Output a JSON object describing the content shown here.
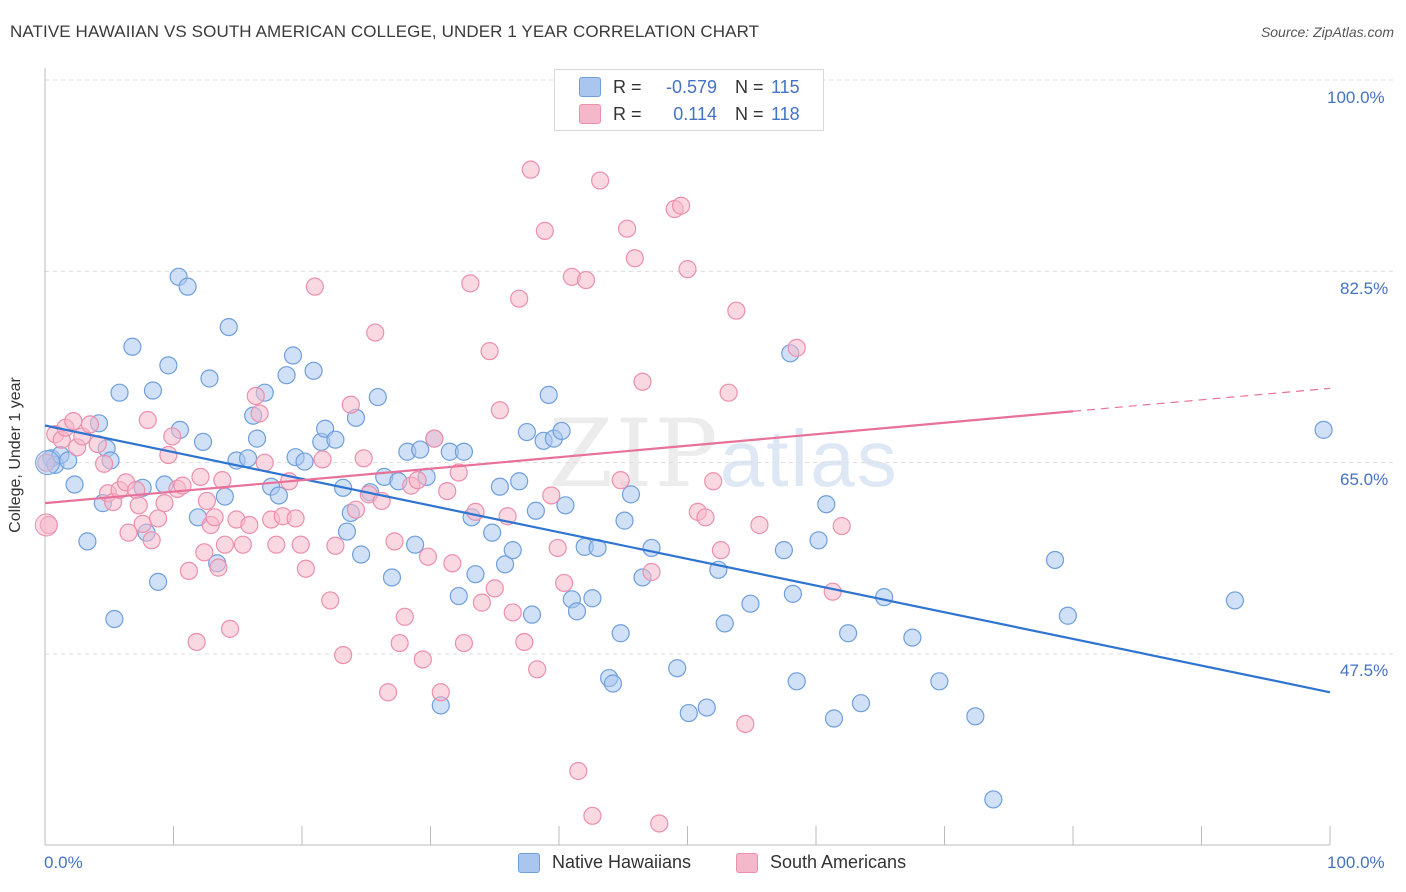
{
  "title": "NATIVE HAWAIIAN VS SOUTH AMERICAN COLLEGE, UNDER 1 YEAR CORRELATION CHART",
  "source": "Source: ZipAtlas.com",
  "watermark": {
    "zip": "ZIP",
    "atlas": "atlas"
  },
  "legend": {
    "r_label": "R =",
    "n_label": "N =",
    "rows": [
      {
        "r": "-0.579",
        "n": "115",
        "color": "#aac6ee"
      },
      {
        "r": "0.114",
        "n": "118",
        "color": "#f5b8cb"
      }
    ]
  },
  "bottom_legend": [
    "Native Hawaiians",
    "South Americans"
  ],
  "colors": {
    "blue_fill": "#aac6ee",
    "blue_stroke": "#6f9fdc",
    "blue_line": "#2f74d0",
    "pink_fill": "#f5b8cb",
    "pink_stroke": "#ec8fac",
    "pink_line": "#e8719a",
    "tick_text": "#4472c4"
  },
  "chart_data": {
    "type": "scatter",
    "title": "NATIVE HAWAIIAN VS SOUTH AMERICAN COLLEGE, UNDER 1 YEAR CORRELATION CHART",
    "xlabel": "",
    "ylabel": "College, Under 1 year",
    "xlim": [
      0,
      100
    ],
    "ylim": [
      30.5,
      102
    ],
    "x_tick_labels": [
      "0.0%",
      "100.0%"
    ],
    "y_ticks": [
      47.5,
      65.0,
      82.5,
      100.0
    ],
    "y_tick_labels": [
      "47.5%",
      "65.0%",
      "82.5%",
      "100.0%"
    ],
    "grid": true,
    "legend_position": "top-center",
    "series": [
      {
        "name": "Native Hawaiians",
        "r": -0.579,
        "n": 115,
        "trend": [
          [
            0,
            68.4
          ],
          [
            100,
            44.0
          ]
        ],
        "points": [
          [
            0.5,
            65.4
          ],
          [
            0.8,
            64.8
          ],
          [
            1.2,
            65.7
          ],
          [
            1.8,
            65.2
          ],
          [
            2.3,
            63.0
          ],
          [
            3.3,
            57.8
          ],
          [
            4.2,
            68.6
          ],
          [
            4.5,
            61.3
          ],
          [
            4.8,
            66.3
          ],
          [
            5.1,
            65.2
          ],
          [
            5.4,
            50.7
          ],
          [
            5.8,
            71.4
          ],
          [
            6.8,
            75.6
          ],
          [
            7.6,
            62.7
          ],
          [
            7.9,
            58.6
          ],
          [
            8.4,
            71.6
          ],
          [
            8.8,
            54.1
          ],
          [
            9.3,
            63.0
          ],
          [
            9.6,
            73.9
          ],
          [
            10.5,
            68.0
          ],
          [
            10.4,
            82.0
          ],
          [
            11.1,
            81.1
          ],
          [
            11.9,
            60.0
          ],
          [
            12.3,
            66.9
          ],
          [
            12.8,
            72.7
          ],
          [
            13.4,
            55.8
          ],
          [
            14.0,
            61.9
          ],
          [
            14.3,
            77.4
          ],
          [
            14.9,
            65.2
          ],
          [
            15.8,
            65.4
          ],
          [
            16.2,
            69.3
          ],
          [
            16.5,
            67.2
          ],
          [
            17.1,
            71.4
          ],
          [
            17.6,
            62.8
          ],
          [
            18.2,
            62.0
          ],
          [
            18.8,
            73.0
          ],
          [
            19.3,
            74.8
          ],
          [
            19.5,
            65.5
          ],
          [
            20.2,
            65.1
          ],
          [
            20.9,
            73.4
          ],
          [
            21.5,
            66.9
          ],
          [
            21.8,
            68.1
          ],
          [
            22.6,
            67.1
          ],
          [
            23.2,
            62.7
          ],
          [
            23.5,
            58.7
          ],
          [
            23.8,
            60.4
          ],
          [
            24.2,
            69.1
          ],
          [
            24.6,
            56.6
          ],
          [
            25.3,
            62.3
          ],
          [
            25.9,
            71.0
          ],
          [
            26.4,
            63.7
          ],
          [
            27.0,
            54.5
          ],
          [
            27.5,
            63.3
          ],
          [
            28.2,
            66.0
          ],
          [
            28.8,
            57.5
          ],
          [
            29.2,
            66.2
          ],
          [
            29.7,
            63.7
          ],
          [
            30.3,
            67.2
          ],
          [
            30.8,
            42.8
          ],
          [
            31.5,
            66.0
          ],
          [
            32.2,
            52.8
          ],
          [
            32.6,
            66.0
          ],
          [
            33.2,
            60.0
          ],
          [
            33.5,
            54.8
          ],
          [
            34.8,
            58.6
          ],
          [
            35.4,
            62.8
          ],
          [
            35.8,
            55.7
          ],
          [
            36.4,
            57.0
          ],
          [
            36.9,
            63.3
          ],
          [
            37.5,
            67.8
          ],
          [
            37.9,
            51.1
          ],
          [
            38.2,
            60.6
          ],
          [
            38.8,
            67.0
          ],
          [
            39.2,
            71.2
          ],
          [
            39.6,
            67.2
          ],
          [
            40.2,
            67.9
          ],
          [
            40.5,
            61.1
          ],
          [
            41.0,
            52.5
          ],
          [
            41.4,
            51.4
          ],
          [
            42.0,
            57.3
          ],
          [
            42.6,
            52.6
          ],
          [
            43.0,
            57.2
          ],
          [
            43.9,
            45.3
          ],
          [
            44.2,
            44.8
          ],
          [
            44.8,
            49.4
          ],
          [
            45.1,
            59.7
          ],
          [
            45.6,
            62.1
          ],
          [
            46.5,
            54.5
          ],
          [
            47.2,
            57.2
          ],
          [
            49.2,
            46.2
          ],
          [
            50.1,
            42.1
          ],
          [
            51.5,
            42.6
          ],
          [
            52.4,
            55.2
          ],
          [
            52.9,
            50.3
          ],
          [
            54.9,
            52.1
          ],
          [
            57.5,
            57.0
          ],
          [
            58.0,
            75.0
          ],
          [
            58.2,
            53.0
          ],
          [
            58.5,
            45.0
          ],
          [
            60.2,
            57.9
          ],
          [
            60.8,
            61.2
          ],
          [
            61.4,
            41.6
          ],
          [
            62.5,
            49.4
          ],
          [
            63.5,
            43.0
          ],
          [
            65.3,
            52.7
          ],
          [
            67.5,
            49.0
          ],
          [
            69.6,
            45.0
          ],
          [
            72.4,
            41.8
          ],
          [
            73.8,
            34.2
          ],
          [
            78.6,
            56.1
          ],
          [
            79.6,
            51.0
          ],
          [
            92.6,
            52.4
          ],
          [
            99.5,
            68.0
          ]
        ]
      },
      {
        "name": "South Americans",
        "r": 0.114,
        "n": 118,
        "trend": [
          [
            0,
            61.3
          ],
          [
            80,
            69.7
          ]
        ],
        "trend_dashed_to": [
          100,
          71.8
        ],
        "points": [
          [
            0.1,
            65.0
          ],
          [
            0.3,
            59.3
          ],
          [
            0.8,
            67.6
          ],
          [
            1.3,
            67.1
          ],
          [
            1.6,
            68.2
          ],
          [
            2.2,
            68.8
          ],
          [
            2.5,
            66.4
          ],
          [
            2.9,
            67.4
          ],
          [
            3.5,
            68.5
          ],
          [
            4.1,
            66.7
          ],
          [
            4.6,
            64.9
          ],
          [
            4.9,
            62.2
          ],
          [
            5.3,
            61.4
          ],
          [
            5.8,
            62.5
          ],
          [
            6.3,
            63.2
          ],
          [
            6.5,
            58.6
          ],
          [
            7.1,
            62.5
          ],
          [
            7.3,
            61.1
          ],
          [
            7.6,
            59.4
          ],
          [
            8.0,
            68.9
          ],
          [
            8.3,
            57.9
          ],
          [
            8.8,
            59.9
          ],
          [
            9.3,
            61.3
          ],
          [
            9.6,
            65.7
          ],
          [
            9.9,
            67.4
          ],
          [
            10.3,
            62.6
          ],
          [
            10.7,
            62.9
          ],
          [
            11.2,
            55.1
          ],
          [
            11.8,
            48.6
          ],
          [
            12.1,
            63.7
          ],
          [
            12.4,
            56.8
          ],
          [
            12.6,
            61.5
          ],
          [
            12.9,
            59.3
          ],
          [
            13.2,
            60.0
          ],
          [
            13.5,
            55.4
          ],
          [
            13.8,
            63.4
          ],
          [
            14.0,
            57.5
          ],
          [
            14.4,
            49.8
          ],
          [
            14.9,
            59.8
          ],
          [
            15.4,
            57.5
          ],
          [
            15.9,
            59.3
          ],
          [
            16.4,
            71.1
          ],
          [
            16.7,
            69.5
          ],
          [
            17.1,
            65.0
          ],
          [
            17.6,
            59.8
          ],
          [
            18.0,
            57.5
          ],
          [
            18.5,
            60.1
          ],
          [
            19.0,
            63.3
          ],
          [
            19.5,
            59.9
          ],
          [
            19.9,
            57.5
          ],
          [
            20.3,
            55.3
          ],
          [
            21.0,
            81.1
          ],
          [
            21.6,
            65.3
          ],
          [
            22.2,
            52.4
          ],
          [
            22.6,
            57.4
          ],
          [
            23.2,
            47.4
          ],
          [
            23.8,
            70.3
          ],
          [
            24.2,
            60.7
          ],
          [
            24.8,
            65.4
          ],
          [
            25.2,
            62.1
          ],
          [
            25.7,
            76.9
          ],
          [
            26.2,
            61.5
          ],
          [
            26.7,
            44.0
          ],
          [
            27.2,
            57.8
          ],
          [
            27.6,
            48.5
          ],
          [
            28.0,
            50.9
          ],
          [
            28.5,
            62.9
          ],
          [
            29.0,
            63.4
          ],
          [
            29.4,
            47.0
          ],
          [
            29.8,
            56.4
          ],
          [
            30.3,
            67.2
          ],
          [
            30.8,
            44.0
          ],
          [
            31.3,
            62.4
          ],
          [
            31.7,
            55.8
          ],
          [
            32.2,
            64.1
          ],
          [
            32.6,
            48.5
          ],
          [
            33.1,
            81.4
          ],
          [
            33.5,
            60.5
          ],
          [
            34.0,
            52.2
          ],
          [
            34.6,
            75.2
          ],
          [
            35.0,
            53.5
          ],
          [
            35.4,
            69.8
          ],
          [
            36.0,
            60.1
          ],
          [
            36.4,
            51.3
          ],
          [
            36.9,
            80.0
          ],
          [
            37.3,
            48.6
          ],
          [
            37.8,
            91.8
          ],
          [
            38.3,
            46.1
          ],
          [
            38.9,
            86.2
          ],
          [
            39.4,
            62.0
          ],
          [
            39.9,
            57.2
          ],
          [
            40.4,
            54.0
          ],
          [
            41.0,
            82.0
          ],
          [
            41.5,
            36.8
          ],
          [
            42.1,
            81.7
          ],
          [
            42.6,
            32.7
          ],
          [
            43.2,
            90.8
          ],
          [
            44.0,
            100.0
          ],
          [
            44.8,
            63.4
          ],
          [
            45.3,
            86.4
          ],
          [
            45.9,
            83.7
          ],
          [
            46.5,
            72.4
          ],
          [
            47.2,
            55.0
          ],
          [
            47.8,
            32.0
          ],
          [
            48.4,
            100.0
          ],
          [
            49.0,
            88.2
          ],
          [
            49.5,
            88.5
          ],
          [
            50.0,
            82.7
          ],
          [
            50.8,
            60.5
          ],
          [
            51.4,
            60.0
          ],
          [
            52.0,
            63.3
          ],
          [
            52.6,
            57.0
          ],
          [
            53.2,
            71.4
          ],
          [
            53.8,
            78.9
          ],
          [
            54.5,
            41.1
          ],
          [
            55.6,
            59.3
          ],
          [
            58.5,
            75.5
          ],
          [
            61.3,
            53.2
          ],
          [
            62.0,
            59.2
          ]
        ]
      }
    ]
  }
}
